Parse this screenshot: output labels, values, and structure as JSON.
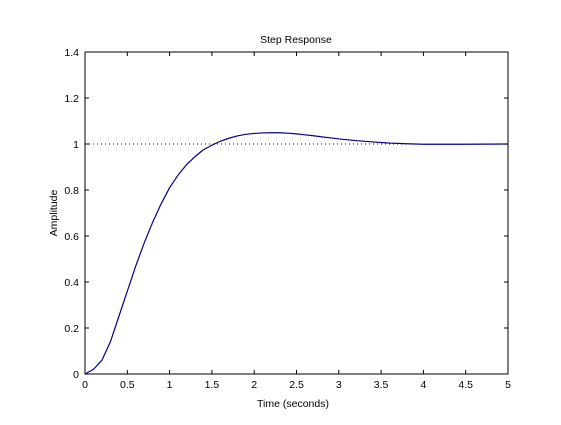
{
  "chart_data": {
    "type": "line",
    "title": "Step Response",
    "xlabel": "Time (seconds)",
    "ylabel": "Amplitude",
    "xlim": [
      0,
      5
    ],
    "ylim": [
      0,
      1.4
    ],
    "xticks": [
      0,
      0.5,
      1,
      1.5,
      2,
      2.5,
      3,
      3.5,
      4,
      4.5,
      5
    ],
    "xtick_labels": [
      "0",
      "0.5",
      "1",
      "1.5",
      "2",
      "2.5",
      "3",
      "3.5",
      "4",
      "4.5",
      "5"
    ],
    "yticks": [
      0,
      0.2,
      0.4,
      0.6,
      0.8,
      1,
      1.2,
      1.4
    ],
    "ytick_labels": [
      "0",
      "0.2",
      "0.4",
      "0.6",
      "0.8",
      "1",
      "1.2",
      "1.4"
    ],
    "grid": false,
    "reference_line": {
      "y": 1,
      "style": "dotted"
    },
    "series": [
      {
        "color": "#00008B",
        "x": [
          0,
          0.1,
          0.2,
          0.3,
          0.4,
          0.5,
          0.6,
          0.7,
          0.8,
          0.9,
          1.0,
          1.1,
          1.2,
          1.3,
          1.4,
          1.5,
          1.6,
          1.7,
          1.8,
          1.9,
          2.0,
          2.1,
          2.2,
          2.3,
          2.4,
          2.5,
          2.6,
          2.7,
          2.8,
          2.9,
          3.0,
          3.2,
          3.4,
          3.6,
          3.8,
          4.0,
          4.5,
          5.0
        ],
        "y": [
          0,
          0.02,
          0.06,
          0.14,
          0.25,
          0.36,
          0.47,
          0.57,
          0.66,
          0.74,
          0.81,
          0.865,
          0.91,
          0.945,
          0.975,
          0.995,
          1.012,
          1.025,
          1.035,
          1.042,
          1.046,
          1.048,
          1.049,
          1.049,
          1.047,
          1.044,
          1.04,
          1.036,
          1.031,
          1.027,
          1.022,
          1.015,
          1.009,
          1.004,
          1.001,
          0.999,
          0.999,
          1.0
        ]
      }
    ]
  }
}
